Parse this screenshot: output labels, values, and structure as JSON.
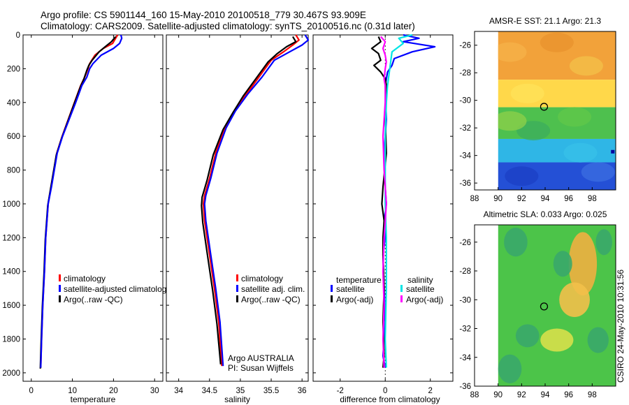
{
  "header": {
    "line1": "Argo profile: CS 5901144_160 15-May-2010 20100518_779 30.467S 93.909E",
    "line2": "Climatology: CARS2009. Satellite-adjusted climatology: synTS_20100516.nc (0.31d later)"
  },
  "side_label": "CSIRO 24-May-2010 10:31:56",
  "colors": {
    "red": "#ff0000",
    "blue": "#0000ff",
    "black": "#000000",
    "cyan": "#00e5e5",
    "magenta": "#ff00ff"
  },
  "chart_data": [
    {
      "type": "line",
      "id": "temperature",
      "xlabel": "temperature",
      "xlim": [
        -2,
        32
      ],
      "ylim": [
        2050,
        0
      ],
      "xticks": [
        0,
        10,
        20,
        30
      ],
      "yticks": [
        0,
        200,
        400,
        600,
        800,
        1000,
        1200,
        1400,
        1600,
        1800,
        2000
      ],
      "legend": [
        {
          "label": "climatology",
          "color": "red"
        },
        {
          "label": "satellite-adjusted climatology",
          "color": "blue"
        },
        {
          "label": "Argo(..raw -QC)",
          "color": "black"
        }
      ],
      "series": [
        {
          "name": "climatology",
          "color": "red",
          "x": [
            21,
            20.5,
            19.8,
            17.5,
            15.5,
            14.2,
            13.8,
            13,
            12,
            10.5,
            9,
            7.5,
            6.2,
            5.5,
            4.8,
            4.1,
            3.5,
            3.2,
            2.8,
            2.5,
            2.3
          ],
          "y": [
            0,
            20,
            50,
            80,
            120,
            170,
            200,
            250,
            300,
            400,
            500,
            600,
            700,
            800,
            900,
            1000,
            1200,
            1400,
            1600,
            1800,
            1970
          ]
        },
        {
          "name": "satellite-adjusted climatology",
          "color": "blue",
          "x": [
            21.8,
            22,
            21.5,
            20,
            17,
            15,
            14.2,
            13.5,
            12.3,
            10.8,
            9.2,
            7.6,
            6.3,
            5.6,
            4.9,
            4.1,
            3.5,
            3.2,
            2.8,
            2.5,
            2.3
          ],
          "y": [
            0,
            20,
            50,
            80,
            120,
            170,
            200,
            250,
            300,
            400,
            500,
            600,
            700,
            800,
            900,
            1000,
            1200,
            1400,
            1600,
            1800,
            1970
          ]
        },
        {
          "name": "Argo(..raw -QC)",
          "color": "black",
          "x": [
            20.5,
            19.5,
            18,
            16.5,
            14.8,
            14,
            13.5,
            12.8,
            11.9,
            10.4,
            8.9,
            7.4,
            6.1,
            5.4,
            4.7,
            4.0,
            3.4,
            3.1,
            2.7,
            2.4,
            2.2
          ],
          "y": [
            10,
            40,
            70,
            100,
            150,
            180,
            210,
            260,
            310,
            410,
            510,
            610,
            710,
            810,
            910,
            1010,
            1210,
            1410,
            1610,
            1810,
            1975
          ]
        }
      ]
    },
    {
      "type": "line",
      "id": "salinity",
      "xlabel": "salinity",
      "xlim": [
        33.8,
        36.1
      ],
      "ylim": [
        2050,
        0
      ],
      "xticks": [
        34,
        34.5,
        35,
        35.5,
        36
      ],
      "legend": [
        {
          "label": "climatology",
          "color": "red"
        },
        {
          "label": "satellite adj. clim.",
          "color": "blue"
        },
        {
          "label": "Argo(..raw -QC)",
          "color": "black"
        }
      ],
      "annotation": [
        "Argo AUSTRALIA",
        "PI: Susan Wijffels"
      ],
      "series": [
        {
          "name": "climatology",
          "color": "red",
          "x": [
            35.9,
            35.95,
            35.85,
            35.7,
            35.5,
            35.3,
            35.1,
            34.9,
            34.75,
            34.6,
            34.5,
            34.42,
            34.4,
            34.42,
            34.5,
            34.58,
            34.65,
            34.7
          ],
          "y": [
            0,
            30,
            60,
            100,
            150,
            250,
            350,
            450,
            550,
            700,
            850,
            950,
            1000,
            1100,
            1300,
            1500,
            1700,
            1960
          ]
        },
        {
          "name": "satellite adj. clim.",
          "color": "blue",
          "x": [
            36.05,
            36.1,
            36,
            35.8,
            35.55,
            35.35,
            35.12,
            34.92,
            34.77,
            34.62,
            34.52,
            34.44,
            34.42,
            34.44,
            34.52,
            34.6,
            34.67,
            34.72
          ],
          "y": [
            0,
            30,
            60,
            100,
            150,
            250,
            350,
            450,
            550,
            700,
            850,
            950,
            1000,
            1100,
            1300,
            1500,
            1700,
            1960
          ]
        },
        {
          "name": "Argo(..raw -QC)",
          "color": "black",
          "x": [
            35.85,
            35.9,
            35.75,
            35.6,
            35.45,
            35.25,
            35.05,
            34.88,
            34.72,
            34.56,
            34.46,
            34.38,
            34.37,
            34.39,
            34.47,
            34.55,
            34.62,
            34.68
          ],
          "y": [
            10,
            40,
            70,
            110,
            160,
            260,
            360,
            460,
            560,
            710,
            860,
            960,
            1010,
            1110,
            1310,
            1510,
            1710,
            1950
          ]
        }
      ]
    },
    {
      "type": "line",
      "id": "difference",
      "xlabel": "difference from climatology",
      "xlim": [
        -3.2,
        3.0
      ],
      "ylim": [
        2050,
        0
      ],
      "xticks": [
        -2,
        0,
        2
      ],
      "legend": [
        {
          "label": "temperature",
          "color": ""
        },
        {
          "label": "satellite",
          "color": "blue"
        },
        {
          "label": "Argo(-adj)",
          "color": "black"
        },
        {
          "label": "salinity",
          "color": ""
        },
        {
          "label": "satellite",
          "color": "cyan"
        },
        {
          "label": "Argo(-adj)",
          "color": "magenta"
        }
      ],
      "series": [
        {
          "name": "temperature satellite",
          "color": "blue",
          "x": [
            0.8,
            1.5,
            0.8,
            2.2,
            1.2,
            0.4,
            0.3,
            0.1,
            0,
            0.05,
            -0.05,
            0,
            0.05,
            -0.05,
            0,
            -0.1,
            -0.05,
            0,
            -0.1,
            0
          ],
          "y": [
            0,
            20,
            40,
            70,
            100,
            140,
            180,
            220,
            300,
            500,
            700,
            900,
            1000,
            1100,
            1200,
            1300,
            1500,
            1700,
            1900,
            1970
          ]
        },
        {
          "name": "temperature Argo(-adj)",
          "color": "black",
          "x": [
            -0.3,
            -0.2,
            -0.6,
            -0.3,
            -0.2,
            -0.5,
            -0.2,
            0,
            0.05,
            0,
            0.05,
            -0.1,
            -0.15,
            -0.05,
            -0.1,
            -0.1,
            -0.05,
            -0.1,
            -0.05,
            -0.1
          ],
          "y": [
            10,
            40,
            80,
            110,
            150,
            180,
            220,
            260,
            300,
            500,
            700,
            900,
            1000,
            1100,
            1200,
            1300,
            1500,
            1700,
            1900,
            1970
          ]
        },
        {
          "name": "salinity satellite",
          "color": "cyan",
          "x": [
            1.2,
            0.6,
            0.8,
            0.3,
            0.25,
            0.2,
            0.15,
            0.1,
            0.05,
            0,
            0,
            0,
            0.05,
            0.05,
            0,
            0.05
          ],
          "y": [
            0,
            20,
            50,
            100,
            150,
            200,
            250,
            300,
            400,
            600,
            800,
            1000,
            1200,
            1500,
            1800,
            1970
          ]
        },
        {
          "name": "salinity Argo(-adj)",
          "color": "magenta",
          "x": [
            -0.2,
            0,
            -0.1,
            0,
            0.05,
            0,
            -0.05,
            0,
            0,
            -0.1,
            -0.05,
            0.05,
            -0.05,
            -0.1,
            -0.05,
            -0.1,
            -0.05
          ],
          "y": [
            10,
            40,
            80,
            120,
            160,
            200,
            260,
            300,
            400,
            600,
            800,
            1000,
            1200,
            1400,
            1600,
            1800,
            1970
          ]
        }
      ]
    },
    {
      "type": "heatmap",
      "id": "sst",
      "title": "AMSR-E SST: 21.1  Argo: 21.3",
      "xlim": [
        88,
        100
      ],
      "ylim": [
        -36.5,
        -25
      ],
      "xticks": [
        88,
        90,
        92,
        94,
        96,
        98
      ],
      "yticks": [
        -26,
        -28,
        -30,
        -32,
        -34,
        -36
      ],
      "data_xlim": [
        90,
        100
      ],
      "marker": [
        93.909,
        -30.467
      ],
      "bands": [
        {
          "from": -25,
          "to": -28.5,
          "color": "#f2a23a"
        },
        {
          "from": -28.5,
          "to": -30.5,
          "color": "#ffd84a"
        },
        {
          "from": -30.5,
          "to": -32.8,
          "color": "#4ec04e"
        },
        {
          "from": -32.8,
          "to": -34.5,
          "color": "#2fb6e6"
        },
        {
          "from": -34.5,
          "to": -36.5,
          "color": "#2450d6"
        }
      ]
    },
    {
      "type": "heatmap",
      "id": "sla",
      "title": "Altimetric SLA: 0.033  Argo: 0.025",
      "xlim": [
        88,
        100
      ],
      "ylim": [
        -36,
        -24.8
      ],
      "xticks": [
        88,
        90,
        92,
        94,
        96,
        98
      ],
      "yticks": [
        -26,
        -28,
        -30,
        -32,
        -34,
        -36
      ],
      "data_xlim": [
        90,
        100
      ],
      "marker": [
        93.909,
        -30.467
      ],
      "background": "#4cc449",
      "blobs": [
        {
          "x": 97.2,
          "y": -27.5,
          "rx": 1.2,
          "ry": 2.2,
          "color": "#f0b040"
        },
        {
          "x": 96.5,
          "y": -30.0,
          "rx": 1.3,
          "ry": 1.2,
          "color": "#f2c04a"
        },
        {
          "x": 95.0,
          "y": -32.8,
          "rx": 1.4,
          "ry": 0.8,
          "color": "#d7e04a"
        },
        {
          "x": 91.5,
          "y": -26.0,
          "rx": 1.0,
          "ry": 1.0,
          "color": "#3aa86a"
        },
        {
          "x": 95.5,
          "y": -27.5,
          "rx": 0.8,
          "ry": 0.9,
          "color": "#3aa86a"
        },
        {
          "x": 92.5,
          "y": -32.5,
          "rx": 1.0,
          "ry": 0.8,
          "color": "#3aa86a"
        },
        {
          "x": 98.5,
          "y": -32.8,
          "rx": 0.9,
          "ry": 0.9,
          "color": "#3aa86a"
        },
        {
          "x": 91.0,
          "y": -34.8,
          "rx": 1.0,
          "ry": 1.0,
          "color": "#3aa86a"
        },
        {
          "x": 99.0,
          "y": -26.0,
          "rx": 0.7,
          "ry": 0.9,
          "color": "#3aa86a"
        }
      ]
    }
  ]
}
